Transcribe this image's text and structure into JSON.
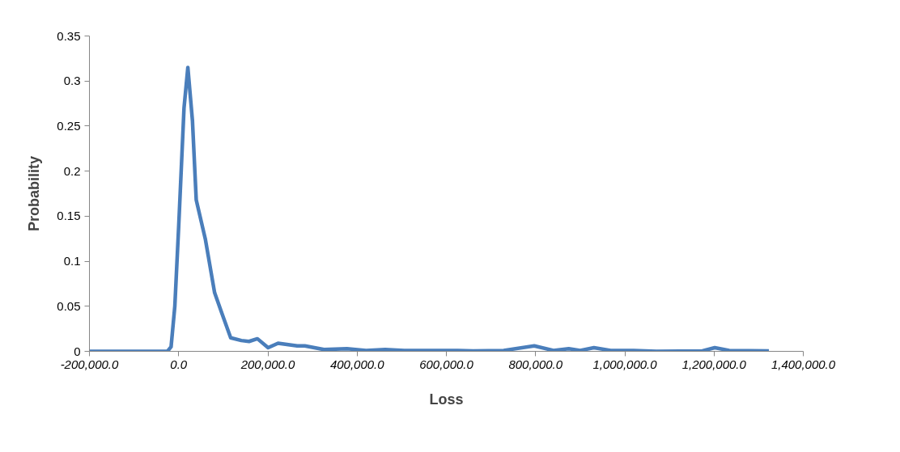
{
  "chart_data": {
    "type": "line",
    "xlabel": "Loss",
    "ylabel": "Probability",
    "x": [
      -200000,
      -25000,
      -17000,
      -8600,
      0,
      12000,
      20600,
      30900,
      39400,
      60000,
      80600,
      97700,
      116600,
      140500,
      157700,
      176500,
      200500,
      222800,
      265700,
      282800,
      325700,
      377100,
      420000,
      462800,
      505700,
      557000,
      625700,
      660000,
      728500,
      797000,
      840000,
      874300,
      900000,
      930700,
      968400,
      1019800,
      1071000,
      1174000,
      1201600,
      1234000,
      1323000
    ],
    "series": [
      {
        "color": "#4a7ebb",
        "values": [
          0,
          0,
          0.005,
          0.05,
          0.138,
          0.27,
          0.315,
          0.256,
          0.168,
          0.124,
          0.065,
          0.041,
          0.015,
          0.012,
          0.011,
          0.014,
          0.004,
          0.009,
          0.006,
          0.006,
          0.002,
          0.003,
          0.001,
          0.002,
          0.001,
          0.001,
          0.001,
          0.0005,
          0.001,
          0.006,
          0.001,
          0.003,
          0.001,
          0.004,
          0.001,
          0.001,
          0,
          0.0005,
          0.004,
          0.001,
          0.0005
        ]
      }
    ],
    "xlim": [
      -200000,
      1400000
    ],
    "xticks": [
      {
        "value": -200000,
        "label": "-200,000.0"
      },
      {
        "value": 0,
        "label": "0.0"
      },
      {
        "value": 200000,
        "label": "200,000.0"
      },
      {
        "value": 400000,
        "label": "400,000.0"
      },
      {
        "value": 600000,
        "label": "600,000.0"
      },
      {
        "value": 800000,
        "label": "800,000.0"
      },
      {
        "value": 1000000,
        "label": "1,000,000.0"
      },
      {
        "value": 1200000,
        "label": "1,200,000.0"
      },
      {
        "value": 1400000,
        "label": "1,400,000.0"
      }
    ],
    "ylim": [
      0,
      0.35
    ],
    "yticks": [
      0,
      0.05,
      0.1,
      0.15,
      0.2,
      0.25,
      0.3,
      0.35
    ]
  }
}
